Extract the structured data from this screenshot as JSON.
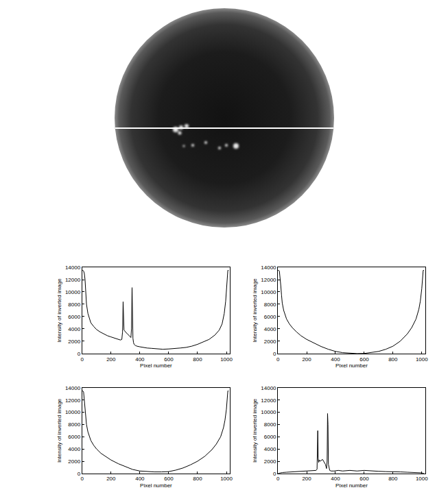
{
  "chart_data": [
    {
      "type": "line",
      "xlabel": "Pixel number",
      "ylabel": "Intensity of inverted image",
      "color": "#000000",
      "grid": false,
      "xlim": [
        0,
        1024
      ],
      "ylim": [
        0,
        14000
      ],
      "xticks": [
        0,
        200,
        400,
        600,
        800,
        1000
      ],
      "yticks": [
        0,
        2000,
        4000,
        6000,
        8000,
        10000,
        12000,
        14000
      ],
      "x": [
        0,
        5,
        10,
        15,
        20,
        25,
        30,
        40,
        50,
        60,
        80,
        100,
        125,
        150,
        175,
        200,
        225,
        250,
        265,
        275,
        280,
        284,
        287,
        290,
        295,
        300,
        310,
        320,
        330,
        338,
        342,
        346,
        349,
        352,
        356,
        360,
        370,
        380,
        400,
        420,
        450,
        480,
        500,
        530,
        560,
        600,
        640,
        680,
        720,
        760,
        800,
        840,
        880,
        920,
        950,
        970,
        985,
        995,
        1000,
        1005,
        1010,
        1015
      ],
      "values": [
        13500,
        13500,
        13400,
        13000,
        12000,
        10000,
        8000,
        6500,
        5600,
        5000,
        4400,
        3900,
        3500,
        3200,
        2900,
        2700,
        2500,
        2300,
        2200,
        2300,
        3500,
        8400,
        4000,
        3800,
        3700,
        3500,
        3300,
        3100,
        2800,
        2600,
        4000,
        10700,
        6000,
        2500,
        1800,
        1500,
        1300,
        1200,
        1100,
        1000,
        900,
        850,
        800,
        750,
        700,
        750,
        800,
        900,
        1000,
        1200,
        1500,
        1900,
        2300,
        3000,
        3800,
        4800,
        6500,
        8500,
        10500,
        12500,
        13500,
        13500
      ]
    },
    {
      "type": "line",
      "xlabel": "Pixel number",
      "ylabel": "Intensity of inverted image",
      "color": "#000000",
      "grid": false,
      "xlim": [
        0,
        1024
      ],
      "ylim": [
        0,
        14000
      ],
      "xticks": [
        0,
        200,
        400,
        600,
        800,
        1000
      ],
      "yticks": [
        0,
        2000,
        4000,
        6000,
        8000,
        10000,
        12000,
        14000
      ],
      "x": [
        0,
        5,
        10,
        15,
        20,
        25,
        30,
        40,
        50,
        60,
        80,
        100,
        130,
        160,
        200,
        250,
        300,
        350,
        400,
        450,
        500,
        550,
        600,
        650,
        700,
        750,
        800,
        850,
        900,
        930,
        960,
        980,
        990,
        1000,
        1005,
        1010,
        1015
      ],
      "values": [
        13500,
        13500,
        13400,
        12500,
        11000,
        9500,
        8200,
        7000,
        6200,
        5600,
        4800,
        4200,
        3500,
        2900,
        2300,
        1700,
        1150,
        700,
        350,
        150,
        50,
        0,
        20,
        150,
        350,
        700,
        1200,
        2000,
        3200,
        4200,
        5600,
        7200,
        8500,
        10500,
        12000,
        13500,
        13500
      ]
    },
    {
      "type": "line",
      "xlabel": "Pixel number",
      "ylabel": "Intensity of inverted image",
      "color": "#000000",
      "grid": false,
      "xlim": [
        0,
        1024
      ],
      "ylim": [
        0,
        14000
      ],
      "xticks": [
        0,
        200,
        400,
        600,
        800,
        1000
      ],
      "yticks": [
        0,
        2000,
        4000,
        6000,
        8000,
        10000,
        12000,
        14000
      ],
      "x": [
        0,
        5,
        10,
        15,
        20,
        25,
        30,
        40,
        50,
        60,
        80,
        100,
        130,
        160,
        200,
        250,
        280,
        290,
        300,
        320,
        350,
        400,
        450,
        500,
        550,
        600,
        650,
        700,
        750,
        800,
        850,
        900,
        930,
        960,
        980,
        990,
        1000,
        1005,
        1010,
        1015
      ],
      "values": [
        13500,
        13500,
        13300,
        12000,
        10500,
        9000,
        8000,
        6800,
        6000,
        5400,
        4600,
        4000,
        3300,
        2800,
        2200,
        1600,
        1300,
        1200,
        1100,
        900,
        650,
        400,
        300,
        250,
        250,
        300,
        550,
        900,
        1400,
        2000,
        2800,
        3900,
        4800,
        6000,
        7500,
        8700,
        10500,
        12000,
        13500,
        13500
      ]
    },
    {
      "type": "line",
      "xlabel": "Pixel number",
      "ylabel": "Intensity of inverted image",
      "color": "#000000",
      "grid": false,
      "xlim": [
        0,
        1024
      ],
      "ylim": [
        0,
        14000
      ],
      "xticks": [
        0,
        200,
        400,
        600,
        800,
        1000
      ],
      "yticks": [
        0,
        2000,
        4000,
        6000,
        8000,
        10000,
        12000,
        14000
      ],
      "x": [
        0,
        30,
        60,
        100,
        150,
        200,
        240,
        265,
        272,
        277,
        280,
        283,
        286,
        290,
        300,
        310,
        320,
        330,
        338,
        342,
        345,
        348,
        351,
        355,
        360,
        370,
        390,
        420,
        450,
        500,
        550,
        600,
        650,
        700,
        750,
        800,
        850,
        900,
        950,
        1000,
        1015
      ],
      "values": [
        0,
        150,
        200,
        250,
        300,
        350,
        400,
        500,
        700,
        7000,
        2500,
        1800,
        2200,
        2000,
        2100,
        2300,
        1900,
        1500,
        800,
        2000,
        9800,
        8000,
        1500,
        800,
        500,
        400,
        400,
        500,
        400,
        500,
        400,
        500,
        400,
        350,
        300,
        300,
        250,
        200,
        150,
        100,
        0
      ]
    }
  ]
}
